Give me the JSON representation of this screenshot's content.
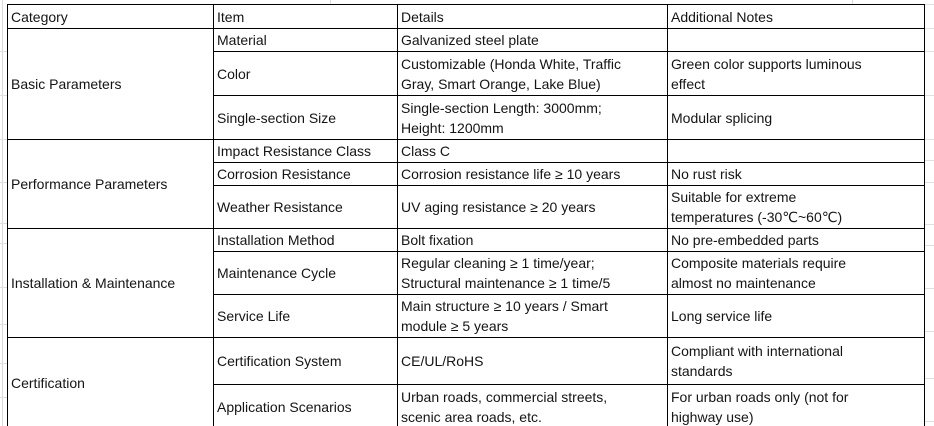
{
  "table": {
    "headers": {
      "category": "Category",
      "item": "Item",
      "details": "Details",
      "notes": "Additional Notes"
    },
    "categories": [
      {
        "label": "Basic Parameters"
      },
      {
        "label": "Performance Parameters"
      },
      {
        "label": "Installation & Maintenance"
      },
      {
        "label": "Certification"
      }
    ],
    "rows": [
      {
        "item": "Material",
        "details": "Galvanized steel plate",
        "notes": ""
      },
      {
        "item": "Color",
        "details": "Customizable (Honda White, Traffic\nGray, Smart Orange, Lake Blue)",
        "notes": "Green color supports luminous\neffect"
      },
      {
        "item": "Single-section Size",
        "details": "Single-section Length: 3000mm;\nHeight: 1200mm",
        "notes": "Modular splicing"
      },
      {
        "item": "Impact Resistance Class",
        "details": "Class C",
        "notes": ""
      },
      {
        "item": "Corrosion Resistance",
        "details": "Corrosion resistance life ≥ 10 years",
        "notes": "No rust risk"
      },
      {
        "item": "Weather Resistance",
        "details": "UV aging resistance ≥ 20 years",
        "notes": "Suitable for extreme\ntemperatures (-30℃~60℃)"
      },
      {
        "item": "Installation Method",
        "details": "Bolt fixation",
        "notes": "No pre-embedded parts"
      },
      {
        "item": "Maintenance Cycle",
        "details": "Regular cleaning ≥ 1 time/year;\nStructural maintenance ≥ 1 time/5",
        "notes": "Composite materials require\nalmost no maintenance"
      },
      {
        "item": "Service Life",
        "details": "Main structure ≥ 10 years / Smart\nmodule ≥ 5 years",
        "notes": "Long service life"
      },
      {
        "item": "Certification System",
        "details": "CE/UL/RoHS",
        "notes": "Compliant with international\nstandards"
      },
      {
        "item": "Application Scenarios",
        "details": "Urban roads, commercial streets,\nscenic area roads, etc.",
        "notes": "For urban roads only (not for\nhighway use)"
      }
    ]
  }
}
